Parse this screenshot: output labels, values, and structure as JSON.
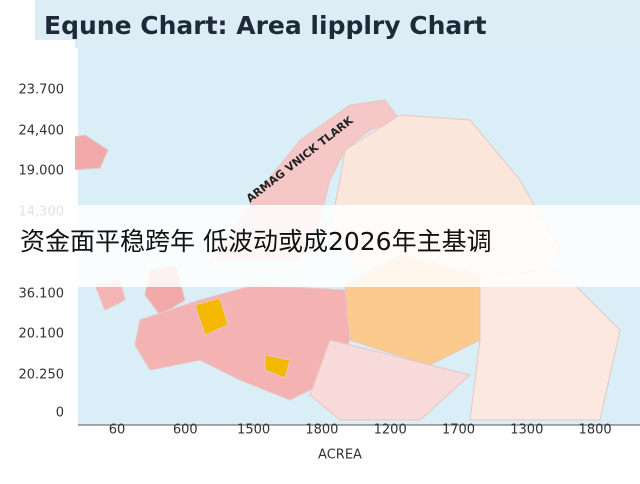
{
  "header": {
    "title": "Equne Chart: Area lipplry Chart"
  },
  "axis": {
    "y_labels": [
      "23.700",
      "24,400",
      "19.000",
      "14,300",
      "36.100",
      "20.100",
      "20.250",
      "0"
    ],
    "x_labels": [
      "60",
      "600",
      "1500",
      "1800",
      "1200",
      "1700",
      "1300",
      "1800"
    ],
    "x_title": "ACREA"
  },
  "map": {
    "annotation": "ARMAG VNICK TLARK"
  },
  "banner": {
    "text": "资金面平稳跨年 低波动或成2026年主基调"
  }
}
